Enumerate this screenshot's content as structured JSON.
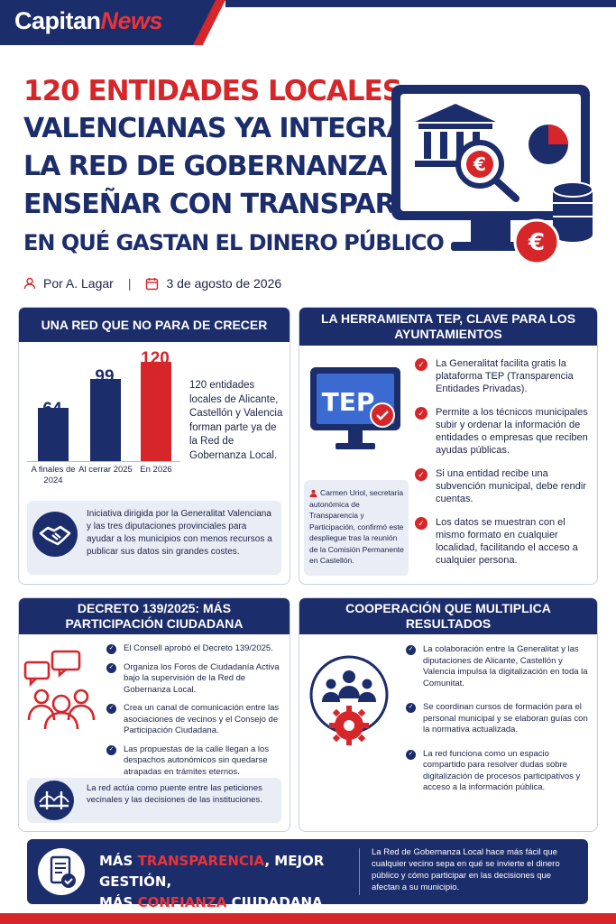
{
  "brand": {
    "part1": "Capitan",
    "part2": "News"
  },
  "headline": {
    "line1": "120 ENTIDADES LOCALES",
    "line2": "VALENCIANAS YA INTEGRAN",
    "line3": "LA RED DE GOBERNANZA PARA",
    "line4": "ENSEÑAR CON TRANSPARENCIA",
    "line5": "EN QUÉ GASTAN EL DINERO PÚBLICO"
  },
  "byline": {
    "author": "Por A. Lagar",
    "date": "3 de agosto de 2026"
  },
  "card1": {
    "title": "UNA RED QUE NO PARA DE CRECER",
    "text": "120 entidades locales de Alicante, Castellón y Valencia forman parte ya de la Red de Gobernanza Local.",
    "note": "Iniciativa dirigida por la Generalitat Valenciana y las tres diputaciones provinciales para ayudar a los municipios con menos recursos a publicar sus datos sin grandes costes."
  },
  "chart_data": {
    "type": "bar",
    "categories": [
      "A finales de 2024",
      "Al cerrar 2025",
      "En 2026"
    ],
    "values": [
      64,
      99,
      120
    ],
    "colors": [
      "#1c2d6b",
      "#1c2d6b",
      "#d6262a"
    ]
  },
  "card2": {
    "title": "LA HERRAMIENTA TEP, CLAVE PARA LOS AYUNTAMIENTOS",
    "screen_label": "TEP",
    "items": [
      "La Generalitat facilita gratis la plataforma TEP (Transparencia Entidades Privadas).",
      "Permite a los técnicos municipales subir y ordenar la información de entidades o empresas que reciben ayudas públicas.",
      "Si una entidad recibe una subvención municipal, debe rendir cuentas.",
      "Los datos se muestran con el mismo formato en cualquier localidad, facilitando el acceso a cualquier persona."
    ],
    "quote": "Carmen Uriol, secretaria autonómica de Transparencia y Participación, confirmó este despliegue tras la reunión de la Comisión Permanente en Castellón."
  },
  "card3": {
    "title": "DECRETO 139/2025: MÁS PARTICIPACIÓN CIUDADANA",
    "items": [
      "El Consell aprobó el Decreto 139/2025.",
      "Organiza los Foros de Ciudadanía Activa bajo la supervisión de la Red de Gobernanza Local.",
      "Crea un canal de comunicación entre las asociaciones de vecinos y el Consejo de Participación Ciudadana.",
      "Las propuestas de la calle llegan a los despachos autonómicos sin quedarse atrapadas en trámites eternos."
    ],
    "note": "La red actúa como puente entre las peticiones vecinales y las decisiones de las instituciones."
  },
  "card4": {
    "title": "COOPERACIÓN QUE MULTIPLICA RESULTADOS",
    "items": [
      "La colaboración entre la Generalitat y las diputaciones de Alicante, Castellón y Valencia impulsa la digitalización en toda la Comunitat.",
      "Se coordinan cursos de formación para el personal municipal y se elaboran guías con la normativa actualizada.",
      "La red funciona como un espacio compartido para resolver dudas sobre digitalización de procesos participativos y acceso a la información pública."
    ]
  },
  "banner": {
    "w1": "MÁS ",
    "w2": "TRANSPARENCIA",
    "w3": ", MEJOR GESTIÓN,",
    "w4": "MÁS ",
    "w5": "CONFIANZA",
    "w6": " CIUDADANA",
    "text": "La Red de Gobernanza Local hace más fácil que cualquier vecino sepa en qué se invierte el dinero público y cómo participar en las decisiones que afectan a su municipio."
  }
}
